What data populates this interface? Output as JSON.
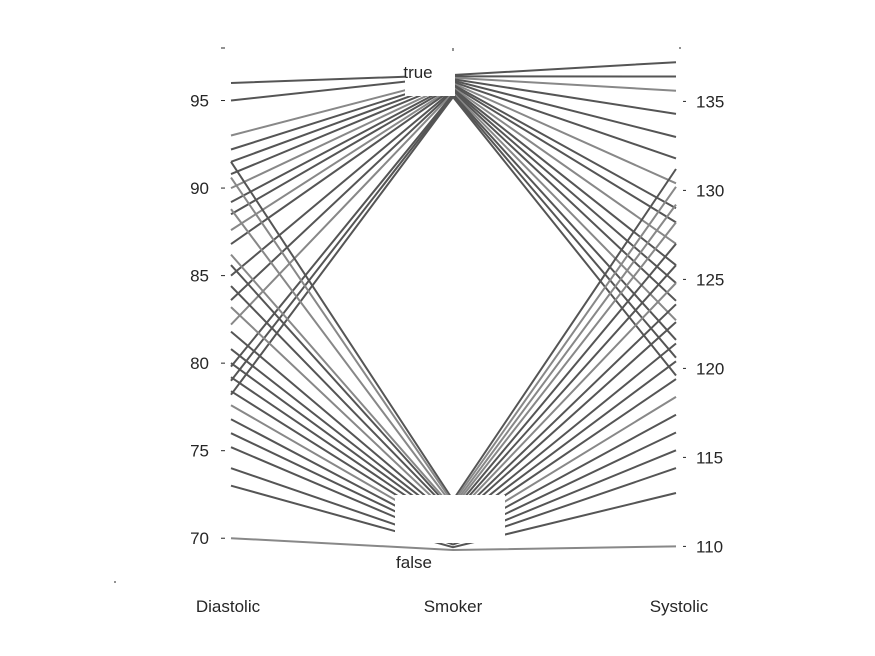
{
  "chart_data": {
    "type": "parallel-coordinates",
    "axes": [
      {
        "name": "Diastolic",
        "kind": "numeric",
        "ylim": [
          67.5,
          98
        ],
        "ticks": [
          70,
          75,
          80,
          85,
          90,
          95
        ],
        "tick_labels": [
          "70",
          "75",
          "80",
          "85",
          "90",
          "95"
        ],
        "tick_side": "left"
      },
      {
        "name": "Smoker",
        "kind": "categorical",
        "categories": [
          "false",
          "true"
        ],
        "category_labels": [
          "false",
          "true"
        ]
      },
      {
        "name": "Systolic",
        "kind": "numeric",
        "ylim": [
          108,
          138
        ],
        "ticks": [
          110,
          115,
          120,
          125,
          130,
          135
        ],
        "tick_labels": [
          "110",
          "115",
          "120",
          "125",
          "130",
          "135"
        ],
        "tick_side": "right"
      }
    ],
    "colors": {
      "smoker_true": "#555555",
      "smoker_false": "#555555",
      "alt": "#888888"
    },
    "lines": [
      {
        "diastolic": 96.0,
        "smoker": "true",
        "systolic": 137.2,
        "tone": "dark"
      },
      {
        "diastolic": 95.0,
        "smoker": "true",
        "systolic": 136.4,
        "tone": "dark"
      },
      {
        "diastolic": 93.0,
        "smoker": "true",
        "systolic": 135.6,
        "tone": "alt"
      },
      {
        "diastolic": 92.2,
        "smoker": "true",
        "systolic": 134.3,
        "tone": "dark"
      },
      {
        "diastolic": 91.5,
        "smoker": "true",
        "systolic": 133.0,
        "tone": "dark"
      },
      {
        "diastolic": 90.8,
        "smoker": "true",
        "systolic": 131.8,
        "tone": "dark"
      },
      {
        "diastolic": 90.0,
        "smoker": "true",
        "systolic": 130.4,
        "tone": "alt"
      },
      {
        "diastolic": 89.2,
        "smoker": "true",
        "systolic": 129.0,
        "tone": "dark"
      },
      {
        "diastolic": 88.5,
        "smoker": "true",
        "systolic": 128.2,
        "tone": "dark"
      },
      {
        "diastolic": 87.6,
        "smoker": "true",
        "systolic": 127.0,
        "tone": "alt"
      },
      {
        "diastolic": 86.8,
        "smoker": "true",
        "systolic": 125.8,
        "tone": "dark"
      },
      {
        "diastolic": 85.0,
        "smoker": "true",
        "systolic": 124.8,
        "tone": "dark"
      },
      {
        "diastolic": 83.6,
        "smoker": "true",
        "systolic": 123.8,
        "tone": "dark"
      },
      {
        "diastolic": 82.2,
        "smoker": "true",
        "systolic": 122.7,
        "tone": "alt"
      },
      {
        "diastolic": 79.8,
        "smoker": "true",
        "systolic": 121.6,
        "tone": "dark"
      },
      {
        "diastolic": 79.0,
        "smoker": "true",
        "systolic": 120.6,
        "tone": "dark"
      },
      {
        "diastolic": 78.2,
        "smoker": "true",
        "systolic": 119.6,
        "tone": "dark"
      },
      {
        "diastolic": 91.5,
        "smoker": "false",
        "systolic": 131.2,
        "tone": "dark"
      },
      {
        "diastolic": 90.6,
        "smoker": "false",
        "systolic": 130.2,
        "tone": "alt"
      },
      {
        "diastolic": 88.8,
        "smoker": "false",
        "systolic": 129.2,
        "tone": "alt"
      },
      {
        "diastolic": 86.2,
        "smoker": "false",
        "systolic": 128.2,
        "tone": "alt"
      },
      {
        "diastolic": 85.6,
        "smoker": "false",
        "systolic": 127.0,
        "tone": "dark"
      },
      {
        "diastolic": 84.4,
        "smoker": "false",
        "systolic": 125.8,
        "tone": "dark"
      },
      {
        "diastolic": 83.2,
        "smoker": "false",
        "systolic": 124.8,
        "tone": "alt"
      },
      {
        "diastolic": 81.8,
        "smoker": "false",
        "systolic": 123.6,
        "tone": "dark"
      },
      {
        "diastolic": 80.8,
        "smoker": "false",
        "systolic": 122.6,
        "tone": "dark"
      },
      {
        "diastolic": 80.0,
        "smoker": "false",
        "systolic": 121.4,
        "tone": "dark"
      },
      {
        "diastolic": 79.2,
        "smoker": "false",
        "systolic": 120.4,
        "tone": "dark"
      },
      {
        "diastolic": 78.4,
        "smoker": "false",
        "systolic": 119.4,
        "tone": "dark"
      },
      {
        "diastolic": 77.6,
        "smoker": "false",
        "systolic": 118.4,
        "tone": "alt"
      },
      {
        "diastolic": 76.8,
        "smoker": "false",
        "systolic": 117.4,
        "tone": "dark"
      },
      {
        "diastolic": 76.0,
        "smoker": "false",
        "systolic": 116.4,
        "tone": "dark"
      },
      {
        "diastolic": 75.2,
        "smoker": "false",
        "systolic": 115.4,
        "tone": "dark"
      },
      {
        "diastolic": 74.0,
        "smoker": "false",
        "systolic": 114.4,
        "tone": "dark"
      },
      {
        "diastolic": 73.0,
        "smoker": "false",
        "systolic": 113.0,
        "tone": "dark"
      },
      {
        "diastolic": 70.0,
        "smoker": "false",
        "systolic": 110.0,
        "tone": "alt"
      }
    ]
  }
}
